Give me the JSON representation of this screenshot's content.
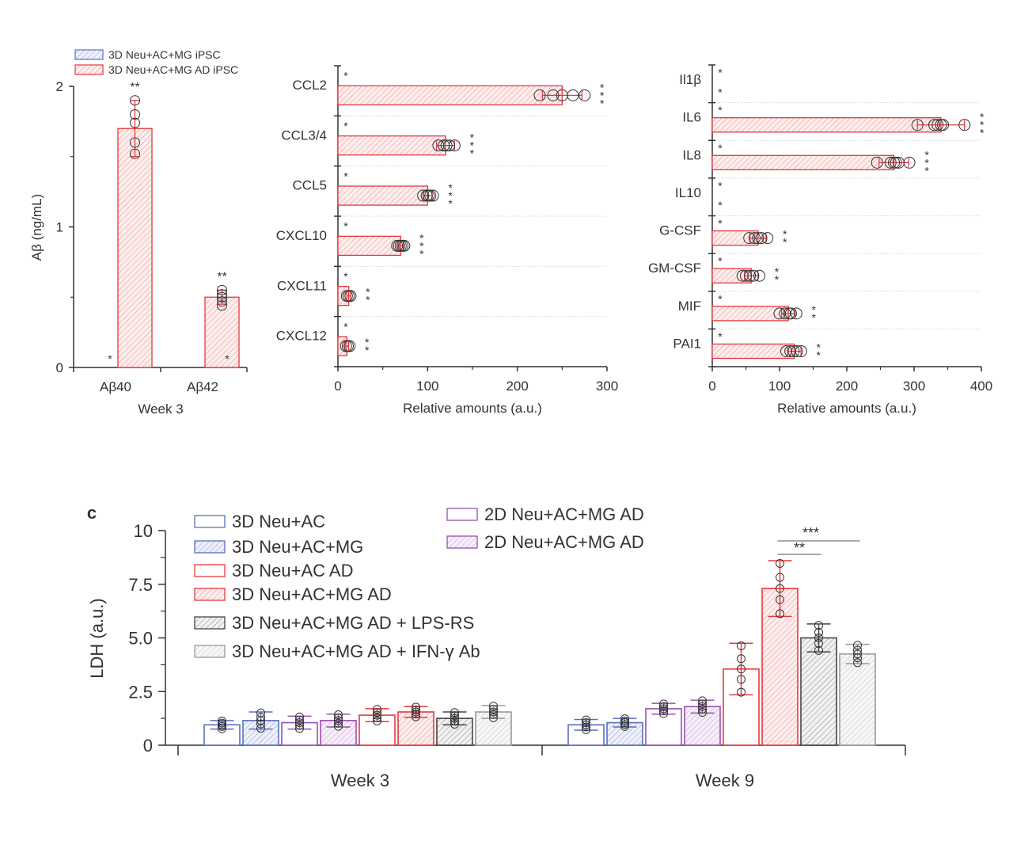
{
  "colors": {
    "blue": "#5a6fc0",
    "red": "#e8383d",
    "purple": "#9b4fb0",
    "dark_gray": "#444444",
    "light_gray": "#9a9a9a",
    "axis": "#333333",
    "dot": "#333333"
  },
  "chart_data": [
    {
      "id": "abeta",
      "type": "bar",
      "title": "",
      "xlabel": "Week 3",
      "ylabel": "Aβ (ng/mL)",
      "ylim": [
        0,
        2
      ],
      "yticks": [
        "0",
        "1",
        "2"
      ],
      "categories": [
        "Aβ40",
        "Aβ42"
      ],
      "legend": [
        "3D Neu+AC+MG iPSC",
        "3D Neu+AC+MG AD iPSC"
      ],
      "legend_position": "top-left",
      "series": [
        {
          "name": "3D Neu+AC+MG iPSC",
          "values": [
            0,
            0
          ],
          "annotations": [
            "*",
            "*"
          ]
        },
        {
          "name": "3D Neu+AC+MG AD iPSC",
          "values": [
            1.7,
            0.5
          ],
          "errors": [
            0.2,
            0.05
          ],
          "points": [
            [
              1.52,
              1.6,
              1.74,
              1.8,
              1.9
            ],
            [
              0.44,
              0.47,
              0.5,
              0.52,
              0.55
            ]
          ],
          "annotations": [
            "**",
            "**"
          ]
        }
      ]
    },
    {
      "id": "chemokines",
      "type": "bar",
      "orientation": "horizontal",
      "xlabel": "Relative amounts (a.u.)",
      "xlim": [
        0,
        300
      ],
      "xticks": [
        "0",
        "100",
        "200",
        "300"
      ],
      "categories": [
        "CCL2",
        "CCL3/4",
        "CCL5",
        "CXCL10",
        "CXCL11",
        "CXCL12"
      ],
      "series": [
        {
          "name": "3D Neu+AC+MG iPSC",
          "values": [
            0,
            0,
            0,
            0,
            0,
            0
          ],
          "annotations": [
            "*",
            "*",
            "*",
            "*",
            "*",
            "*"
          ]
        },
        {
          "name": "3D Neu+AC+MG AD iPSC",
          "values": [
            250,
            120,
            100,
            70,
            12,
            10
          ],
          "errors": [
            22,
            10,
            5,
            3,
            2,
            2
          ],
          "points": [
            [
              225,
              240,
              250,
              262,
              275
            ],
            [
              112,
              118,
              121,
              124,
              130
            ],
            [
              95,
              99,
              101,
              103,
              106
            ],
            [
              66,
              68,
              70,
              72,
              74
            ],
            [
              10,
              12,
              14
            ],
            [
              9,
              11,
              13
            ]
          ],
          "annotations": [
            "***",
            "***",
            "***",
            "***",
            "**",
            "**"
          ]
        }
      ]
    },
    {
      "id": "cytokines",
      "type": "bar",
      "orientation": "horizontal",
      "xlabel": "Relative amounts (a.u.)",
      "xlim": [
        0,
        400
      ],
      "xticks": [
        "0",
        "100",
        "200",
        "300",
        "400"
      ],
      "categories": [
        "Il1β",
        "IL6",
        "IL8",
        "IL10",
        "G-CSF",
        "GM-CSF",
        "MIF",
        "PAI1"
      ],
      "series": [
        {
          "name": "3D Neu+AC+MG iPSC",
          "values": [
            0,
            0,
            0,
            0,
            0,
            0,
            0,
            0
          ],
          "annotations": [
            "*",
            "*",
            "*",
            "*",
            "*",
            "*",
            "*",
            "*"
          ]
        },
        {
          "name": "3D Neu+AC+MG AD iPSC",
          "values": [
            0,
            340,
            270,
            0,
            68,
            58,
            113,
            122
          ],
          "errors": [
            0,
            35,
            22,
            0,
            12,
            10,
            10,
            10
          ],
          "points": [
            [],
            [
              305,
              330,
              335,
              340,
              343,
              375
            ],
            [
              245,
              265,
              270,
              273,
              277,
              293
            ],
            [],
            [
              55,
              63,
              68,
              73,
              82
            ],
            [
              45,
              50,
              56,
              61,
              70
            ],
            [
              100,
              108,
              114,
              117,
              125
            ],
            [
              110,
              116,
              121,
              126,
              132
            ]
          ],
          "annotations": [
            "*",
            "***",
            "***",
            "*",
            "**",
            "**",
            "**",
            "**"
          ]
        }
      ]
    },
    {
      "id": "ldh",
      "type": "bar",
      "panel_label": "c",
      "ylabel": "LDH (a.u.)",
      "ylim": [
        0,
        10
      ],
      "yticks": [
        "0",
        "2.5",
        "5.0",
        "7.5",
        "10"
      ],
      "categories": [
        "Week 3",
        "Week 9"
      ],
      "legend_position": "top-left",
      "series": [
        {
          "name": "3D Neu+AC",
          "style": "open",
          "color": "blue",
          "values": [
            0.95,
            0.95
          ],
          "errors": [
            0.2,
            0.25
          ]
        },
        {
          "name": "3D Neu+AC+MG",
          "style": "hatched",
          "color": "blue",
          "values": [
            1.15,
            1.05
          ],
          "errors": [
            0.4,
            0.2
          ]
        },
        {
          "name": "2D Neu+AC+MG AD",
          "style": "open",
          "color": "purple",
          "values": [
            1.05,
            1.7
          ],
          "errors": [
            0.3,
            0.25
          ]
        },
        {
          "name": "2D Neu+AC+MG AD",
          "style": "hatched",
          "color": "purple",
          "values": [
            1.15,
            1.8
          ],
          "errors": [
            0.3,
            0.3
          ]
        },
        {
          "name": "3D Neu+AC AD",
          "style": "open",
          "color": "red",
          "values": [
            1.4,
            3.55
          ],
          "errors": [
            0.3,
            1.2
          ]
        },
        {
          "name": "3D Neu+AC+MG AD",
          "style": "hatched",
          "color": "red",
          "values": [
            1.55,
            7.3
          ],
          "errors": [
            0.25,
            1.3
          ]
        },
        {
          "name": "3D Neu+AC+MG AD + LPS-RS",
          "style": "hatched",
          "color": "dark_gray",
          "values": [
            1.25,
            5.0
          ],
          "errors": [
            0.3,
            0.65
          ]
        },
        {
          "name": "3D Neu+AC+MG AD + IFN-γ Ab",
          "style": "hatched",
          "color": "light_gray",
          "values": [
            1.55,
            4.25
          ],
          "errors": [
            0.3,
            0.45
          ]
        }
      ],
      "legend": [
        "3D Neu+AC",
        "3D Neu+AC+MG",
        "3D Neu+AC AD",
        "3D Neu+AC+MG AD",
        "3D Neu+AC+MG AD + LPS-RS",
        "3D Neu+AC+MG AD + IFN-γ Ab",
        "2D Neu+AC+MG AD",
        "2D Neu+AC+MG AD"
      ],
      "significance": [
        {
          "label": "**",
          "from": "3D Neu+AC+MG AD",
          "to": "3D Neu+AC+MG AD + LPS-RS",
          "group": "Week 9"
        },
        {
          "label": "***",
          "from": "3D Neu+AC+MG AD",
          "to": "3D Neu+AC+MG AD + IFN-γ Ab",
          "group": "Week 9"
        }
      ]
    }
  ]
}
